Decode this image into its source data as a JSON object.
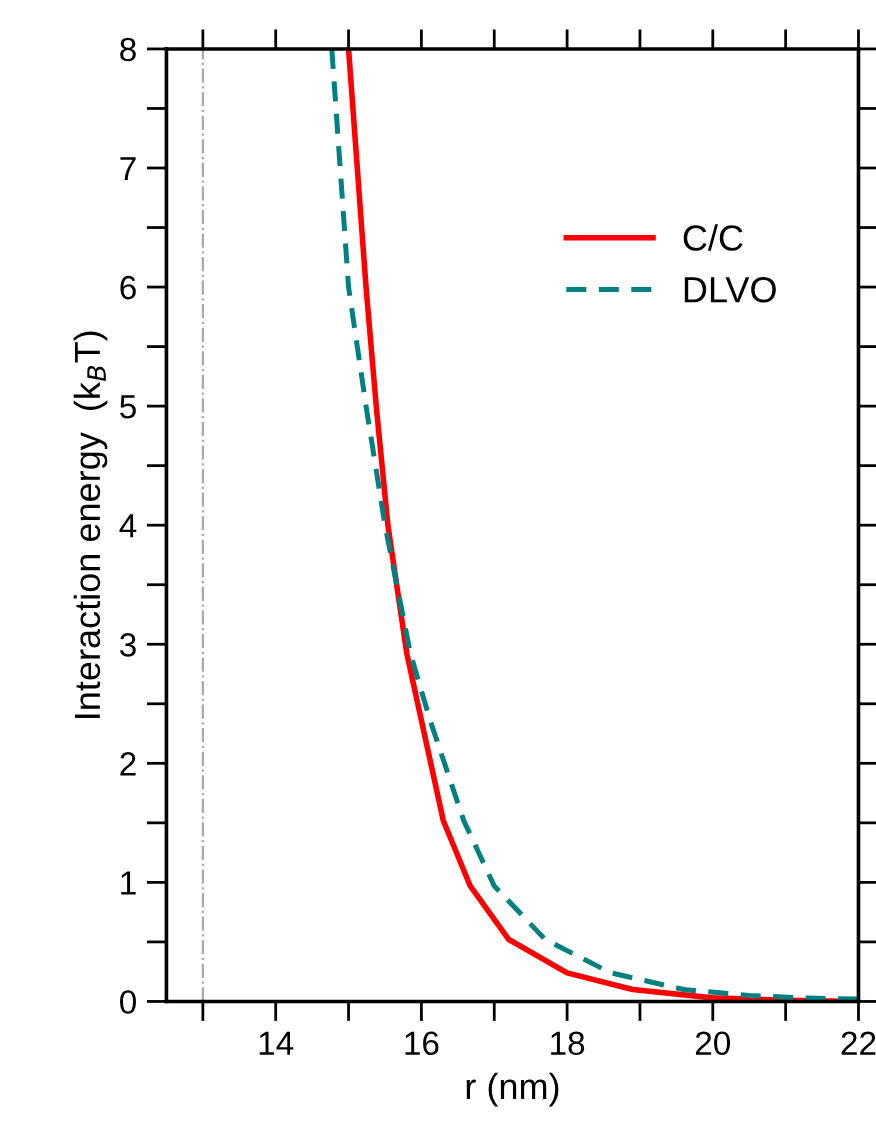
{
  "chart_data": {
    "type": "line",
    "xlabel": "r (nm)",
    "ylabel": "Interaction energy  (k$_{B}$T)",
    "xlim": [
      12.5,
      22
    ],
    "xticks": [
      {
        "value": 13,
        "label": null
      },
      14,
      {
        "value": 15,
        "label": null
      },
      16,
      {
        "value": 17,
        "label": null
      },
      18,
      {
        "value": 19,
        "label": null
      },
      20,
      {
        "value": 21,
        "label": null
      },
      22
    ],
    "ylim": [
      0,
      8
    ],
    "yticks": [
      0,
      {
        "value": 0.5,
        "label": null
      },
      1,
      {
        "value": 1.5,
        "label": null
      },
      2,
      {
        "value": 2.5,
        "label": null
      },
      3,
      {
        "value": 3.5,
        "label": null
      },
      4,
      {
        "value": 4.5,
        "label": null
      },
      5,
      {
        "value": 5.5,
        "label": null
      },
      6,
      {
        "value": 6.5,
        "label": null
      },
      7,
      {
        "value": 7.5,
        "label": null
      },
      8
    ],
    "grid": false,
    "legend": "top right",
    "ref_lines": [
      {
        "axis": "x",
        "value": 13,
        "color": "#aaaaaa",
        "line_style": "dashdot"
      }
    ],
    "series": [
      {
        "name": "C/C",
        "color": "#ff0000",
        "line_style": "solid",
        "x": [
          15.0,
          15.24,
          15.38,
          15.54,
          15.8,
          16.0,
          16.3,
          16.67,
          17.2,
          18.0,
          18.9,
          20.0,
          21.0,
          22.0
        ],
        "values": [
          8,
          6,
          5,
          4,
          2.92,
          2.36,
          1.52,
          0.97,
          0.52,
          0.24,
          0.1,
          0.03,
          0.01,
          0
        ]
      },
      {
        "name": "DLVO",
        "color": "#008080",
        "line_style": "dashed",
        "x": [
          14.77,
          15.0,
          15.24,
          15.5,
          15.85,
          16.12,
          16.58,
          17.0,
          17.7,
          18.6,
          19.6,
          20.5,
          21.2,
          22.0
        ],
        "values": [
          8,
          6,
          5,
          4,
          2.92,
          2.36,
          1.52,
          0.97,
          0.52,
          0.24,
          0.1,
          0.05,
          0.03,
          0.02
        ]
      }
    ]
  }
}
